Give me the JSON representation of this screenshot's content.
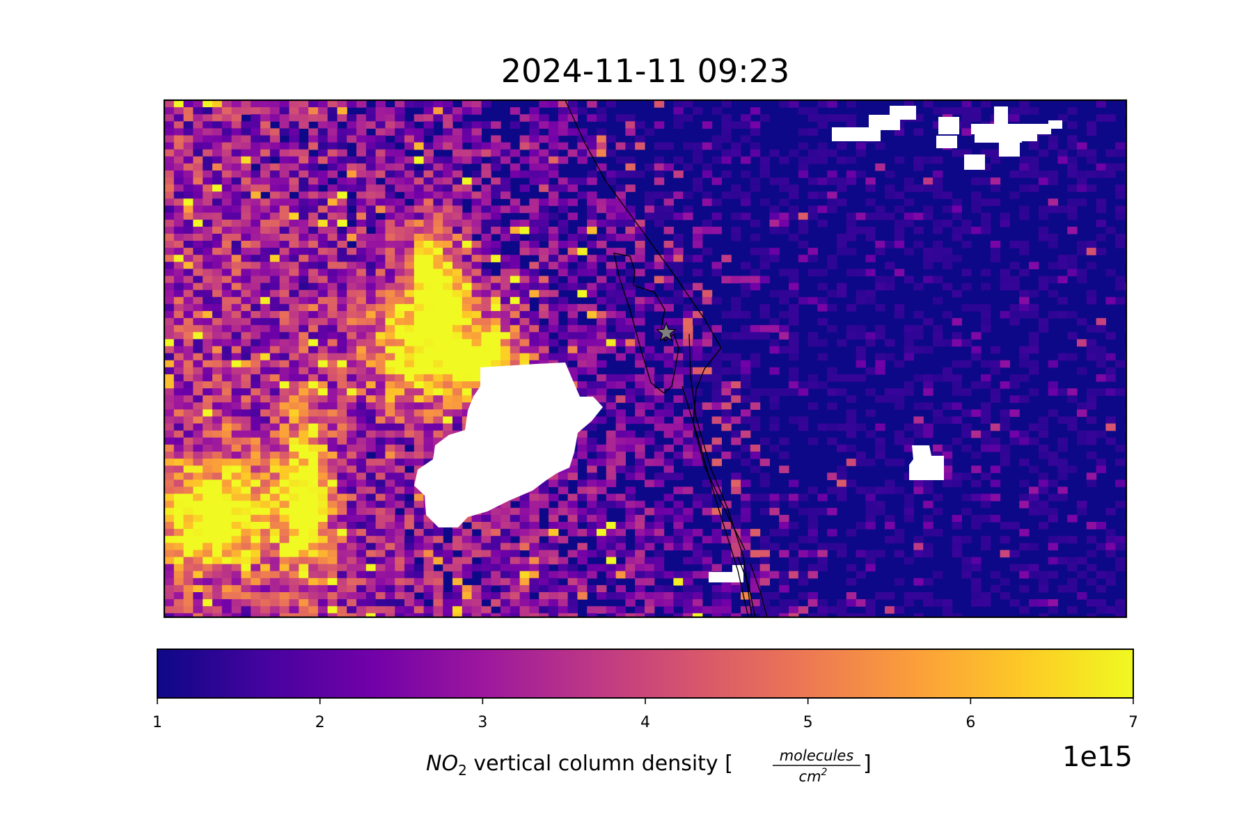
{
  "chart_data": {
    "type": "heatmap",
    "title": "2024-11-11 09:23",
    "colormap": "plasma",
    "colormap_stops": [
      "#0d0887",
      "#46039f",
      "#7201a8",
      "#9c179e",
      "#bd3786",
      "#d8576b",
      "#ed7953",
      "#fb9f3a",
      "#fdca26",
      "#f0f921"
    ],
    "missing_color": "#ffffff",
    "colorbar": {
      "range": [
        1,
        7
      ],
      "ticks": [
        "1",
        "2",
        "3",
        "4",
        "5",
        "6",
        "7"
      ],
      "offset_text": "1e15",
      "label": {
        "species_main": "NO",
        "species_sub": "2",
        "text": " vertical column density [",
        "unit_numerator": "molecules",
        "unit_denominator": "cm",
        "unit_exponent": "2",
        "close": "]"
      },
      "orientation": "horizontal",
      "location": "bottom"
    },
    "hotspots": [
      {
        "name": "main urban plume",
        "value": 7
      },
      {
        "name": "southwest urban plume",
        "value": 7
      }
    ],
    "background_value": 1,
    "missing_regions": [
      "central cloud gap",
      "northeast cloud gaps",
      "east cloud gap",
      "south coastal gap"
    ],
    "overlay": {
      "coastline": true,
      "site_marker": {
        "symbol": "star",
        "color": "#808080"
      }
    },
    "axes_visible": false
  }
}
